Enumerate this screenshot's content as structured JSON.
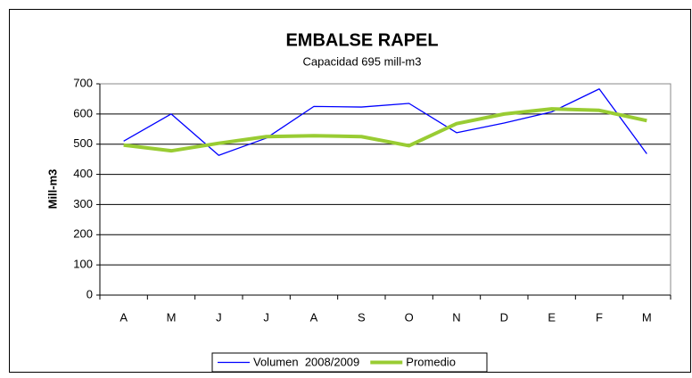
{
  "chart_data": {
    "type": "line",
    "title": "EMBALSE RAPEL",
    "subtitle": "Capacidad 695 mill-m3",
    "y_label": "Mill-m3",
    "categories": [
      "A",
      "M",
      "J",
      "J",
      "A",
      "S",
      "O",
      "N",
      "D",
      "E",
      "F",
      "M"
    ],
    "series": [
      {
        "name": "Volumen  2008/2009",
        "color": "#0000ff",
        "width": 1.3,
        "values": [
          510,
          600,
          463,
          520,
          625,
          623,
          635,
          538,
          570,
          607,
          683,
          468
        ]
      },
      {
        "name": "Promedio",
        "color": "#99cc33",
        "width": 4,
        "values": [
          497,
          478,
          503,
          525,
          528,
          525,
          495,
          568,
          600,
          617,
          612,
          578
        ]
      }
    ],
    "ylim": [
      0,
      700
    ],
    "yticks": [
      0,
      100,
      200,
      300,
      400,
      500,
      600,
      700
    ],
    "grid": true,
    "legend": "bottom"
  }
}
